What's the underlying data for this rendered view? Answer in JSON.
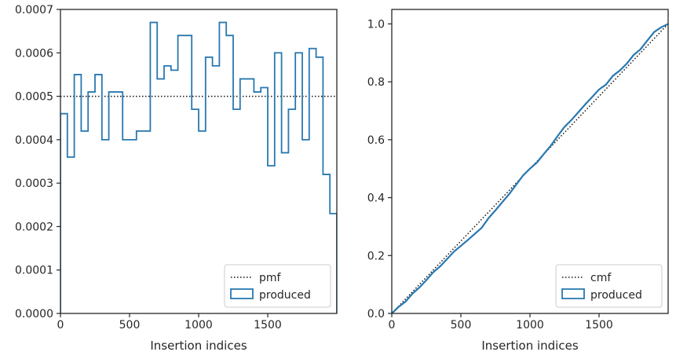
{
  "colors": {
    "produced": "#2878b0",
    "reference": "#111111",
    "axis": "#262626",
    "legend_border": "#cccccc"
  },
  "chart_data": [
    {
      "type": "step",
      "title": "",
      "xlabel": "Insertion indices",
      "ylabel": "",
      "xlim": [
        0,
        2000
      ],
      "ylim": [
        0,
        0.0007
      ],
      "xticks": [
        0,
        500,
        1000,
        1500
      ],
      "yticks": [
        0,
        0.0001,
        0.0002,
        0.0003,
        0.0004,
        0.0005,
        0.0006,
        0.0007
      ],
      "ytick_labels": [
        "0.0000",
        "0.0001",
        "0.0002",
        "0.0003",
        "0.0004",
        "0.0005",
        "0.0006",
        "0.0007"
      ],
      "grid": false,
      "legend_position": "lower-right",
      "reference": {
        "name": "pmf",
        "style": "dotted",
        "value": 0.0005
      },
      "series": [
        {
          "name": "produced",
          "bin_width": 50,
          "values": [
            0.00046,
            0.00036,
            0.00055,
            0.00042,
            0.00051,
            0.00055,
            0.0004,
            0.00051,
            0.00051,
            0.0004,
            0.0004,
            0.00042,
            0.00042,
            0.00067,
            0.00054,
            0.00057,
            0.00056,
            0.00064,
            0.00064,
            0.00047,
            0.00042,
            0.00059,
            0.00057,
            0.00067,
            0.00064,
            0.00047,
            0.00054,
            0.00054,
            0.00051,
            0.00052,
            0.00034,
            0.0006,
            0.00037,
            0.00047,
            0.0006,
            0.0004,
            0.00061,
            0.00059,
            0.00032,
            0.00023
          ]
        }
      ]
    },
    {
      "type": "line",
      "title": "",
      "xlabel": "Insertion indices",
      "ylabel": "",
      "xlim": [
        0,
        2000
      ],
      "ylim": [
        0,
        1.05
      ],
      "xticks": [
        0,
        500,
        1000,
        1500
      ],
      "yticks": [
        0,
        0.2,
        0.4,
        0.6,
        0.8,
        1.0
      ],
      "ytick_labels": [
        "0.0",
        "0.2",
        "0.4",
        "0.6",
        "0.8",
        "1.0"
      ],
      "grid": false,
      "legend_position": "lower-right",
      "reference": {
        "name": "cmf",
        "style": "dotted",
        "x": [
          0,
          2000
        ],
        "y": [
          0,
          1
        ]
      },
      "series": [
        {
          "name": "produced",
          "x": [
            0,
            50,
            100,
            150,
            200,
            250,
            300,
            350,
            400,
            450,
            500,
            550,
            600,
            650,
            700,
            750,
            800,
            850,
            900,
            950,
            1000,
            1050,
            1100,
            1150,
            1200,
            1250,
            1300,
            1350,
            1400,
            1450,
            1500,
            1550,
            1600,
            1650,
            1700,
            1750,
            1800,
            1850,
            1900,
            1950,
            2000
          ],
          "y": [
            0,
            0.023,
            0.041,
            0.0685,
            0.0895,
            0.115,
            0.1425,
            0.1625,
            0.188,
            0.2135,
            0.2335,
            0.2535,
            0.2745,
            0.2955,
            0.329,
            0.356,
            0.3845,
            0.4125,
            0.4445,
            0.4765,
            0.5,
            0.521,
            0.5505,
            0.579,
            0.6125,
            0.6445,
            0.668,
            0.695,
            0.722,
            0.7475,
            0.7735,
            0.7905,
            0.8205,
            0.839,
            0.8625,
            0.8925,
            0.9125,
            0.943,
            0.9725,
            0.9885,
            1.0
          ]
        }
      ]
    }
  ]
}
